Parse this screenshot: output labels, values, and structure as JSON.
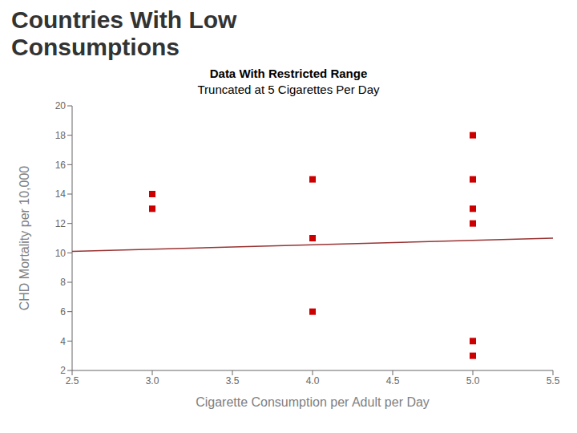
{
  "chart_data": {
    "type": "scatter",
    "title": "Countries With Low\nConsumptions",
    "subtitle": [
      "Data With Restricted Range",
      "Truncated at 5 Cigarettes Per Day"
    ],
    "xlabel": "Cigarette Consumption per Adult per Day",
    "ylabel": "CHD Mortality per 10,000",
    "series": [
      {
        "type": "scatter",
        "marker": "square",
        "color": "#cc0000",
        "x": [
          3.0,
          3.0,
          4.0,
          4.0,
          4.0,
          5.0,
          5.0,
          5.0,
          5.0,
          5.0,
          5.0
        ],
        "values": [
          14.0,
          13.0,
          15.0,
          11.0,
          6.0,
          18.0,
          15.0,
          13.0,
          12.0,
          4.0,
          3.0
        ]
      },
      {
        "type": "line",
        "line_style": "solid",
        "color": "#993333",
        "x": [
          2.5,
          5.5
        ],
        "values": [
          10.1,
          11.0
        ]
      }
    ],
    "xlim": [
      2.5,
      5.5
    ],
    "ylim": [
      2,
      20
    ],
    "xticks": [
      2.5,
      {
        "value": 3,
        "label": "3.0"
      },
      3.5,
      {
        "value": 4,
        "label": "4.0"
      },
      4.5,
      {
        "value": 5,
        "label": "5.0"
      },
      5.5
    ],
    "yticks": [
      2,
      4,
      6,
      8,
      10,
      12,
      14,
      16,
      18,
      20
    ],
    "grid": false
  }
}
